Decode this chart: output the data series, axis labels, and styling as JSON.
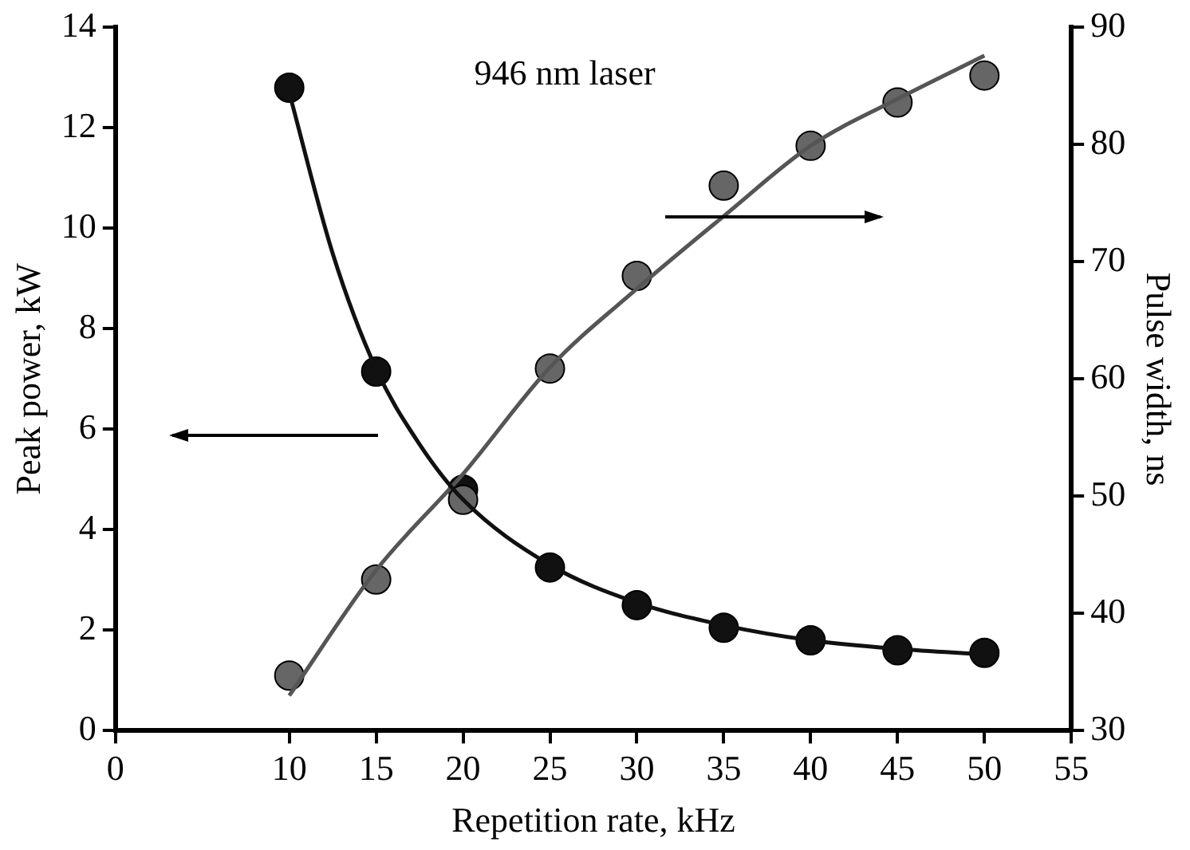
{
  "chart_data": {
    "type": "scatter",
    "xlabel": "Repetition rate, kHz",
    "ylabel": "Peak power, kW",
    "y2label": "Pulse width, ns",
    "annotations": [
      "946 nm laser"
    ],
    "x": [
      10,
      15,
      20,
      25,
      30,
      35,
      40,
      45,
      50
    ],
    "xlim": [
      0,
      55
    ],
    "xticks": [
      0,
      10,
      15,
      20,
      25,
      30,
      35,
      40,
      45,
      50,
      55
    ],
    "ylim": [
      0,
      14
    ],
    "yticks": [
      0,
      2,
      4,
      6,
      8,
      10,
      12,
      14
    ],
    "y2lim": [
      30,
      90
    ],
    "y2ticks": [
      30,
      40,
      50,
      60,
      70,
      80,
      90
    ],
    "grid": false,
    "legend": false,
    "marker": "circle",
    "series": [
      {
        "type": "line",
        "color": "#111111",
        "marker": "none",
        "x": [
          10,
          12.5,
          15,
          17.5,
          20,
          25,
          30,
          35,
          40,
          45,
          50
        ],
        "values": [
          12.7,
          9.5,
          7.2,
          5.7,
          4.6,
          3.3,
          2.55,
          2.1,
          1.8,
          1.63,
          1.52
        ]
      },
      {
        "type": "line",
        "color": "#555555",
        "marker": "none",
        "axis": "y2",
        "x": [
          10,
          15,
          20,
          25,
          30,
          35,
          40,
          45,
          50
        ],
        "values": [
          33,
          43.7,
          51.9,
          61,
          67.7,
          73.9,
          79.9,
          83.9,
          87.6
        ]
      },
      {
        "color": "#666666",
        "axis": "y2",
        "values": [
          34.7,
          42.9,
          49.7,
          60.9,
          68.8,
          76.5,
          79.9,
          83.6,
          85.9
        ]
      },
      {
        "color": "#111111",
        "values": [
          12.8,
          7.15,
          4.8,
          3.25,
          2.5,
          2.05,
          1.8,
          1.6,
          1.55
        ]
      }
    ]
  }
}
